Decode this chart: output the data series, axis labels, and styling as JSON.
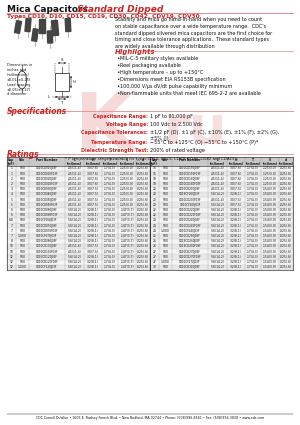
{
  "title_black": "Mica Capacitors",
  "title_red": " Standard Dipped",
  "subtitle": "Types CD10, D10, CD15, CD19, CD30, CD42, CDV19, CDV30",
  "body_text": "Stability and mica go hand-in-hand when you need to count\non stable capacitance over a wide temperature range.  CDC's\nstandard dipped silvered mica capacitors are the first choice for\ntiming and close tolerance applications.  These standard types\nare widely available through distribution",
  "highlights_title": "Highlights",
  "highlights": [
    "MIL-C-5 military styles available",
    "Reel packaging available",
    "High temperature – up to +150°C",
    "Dimensions meet EIA RS153B specification",
    "100,000 V/μs dV/dt pulse capability minimum",
    "Non-flammable units that meet IEC 695-2-2 are available"
  ],
  "specs_title": "Specifications",
  "specs": [
    [
      "Capacitance Range:",
      "1 pF to 91,000 pF"
    ],
    [
      "Voltage Range:",
      "100 Vdc to 2,500 Vdc"
    ],
    [
      "Capacitance Tolerances:",
      "±1/2 pF (D), ±1 pF (C), ±10% (E), ±1% (F), ±2% (G),\n±5% (J)"
    ],
    [
      "Temperature Range:",
      "−55°C to +125°C (O) −55°C to +150°C (P)*"
    ],
    [
      "Dielectric Strength Test:",
      "200% of rated voltage"
    ]
  ],
  "spec_note": "* P temperature range available for types CD10, CD15, CD19, CD30, CD42 and CDA15",
  "ratings_title": "Ratings",
  "ratings_data_left": [
    [
      "1",
      "500",
      "CD10CD010J03F",
      ".45(11.4)",
      ".30(7.6)",
      ".17(4.3)",
      ".125(3.0)",
      ".025(.6)"
    ],
    [
      "1",
      "500",
      "CD10CD010F03F",
      ".45(11.4)",
      ".30(7.6)",
      ".17(4.3)",
      ".125(3.0)",
      ".025(.6)"
    ],
    [
      "2",
      "500",
      "CD10CD020J03F",
      ".45(11.4)",
      ".30(7.6)",
      ".17(4.3)",
      ".125(3.0)",
      ".025(.6)"
    ],
    [
      "2",
      "500",
      "CD10CD020F03F",
      ".45(11.4)",
      ".30(7.6)",
      ".17(4.3)",
      ".125(3.0)",
      ".025(.6)"
    ],
    [
      "3",
      "500",
      "CD10CD030J03F",
      ".45(11.4)",
      ".30(7.5)",
      ".17(4.3)",
      ".125(3.0)",
      ".025(.6)"
    ],
    [
      "4",
      "500",
      "CD10CD040J03F",
      ".45(11.4)",
      ".30(7.5)",
      ".17(4.3)",
      ".125(3.0)",
      ".025(.6)"
    ],
    [
      "5",
      "500",
      "CD10CD050J03F",
      ".45(11.4)",
      ".30(7.5)",
      ".17(4.3)",
      ".125(3.0)",
      ".025(.6)"
    ],
    [
      "5",
      "500",
      "CD10CD050F03F",
      ".45(11.4)",
      ".30(7.5)",
      ".17(4.3)",
      ".125(3.0)",
      ".025(.6)"
    ],
    [
      "6",
      "500",
      "CD10CD060J03F",
      ".56(14.2)",
      ".32(8.1)",
      ".17(4.3)",
      ".147(3.7)",
      ".025(.6)"
    ],
    [
      "6",
      "500",
      "CD10CD060F03F",
      ".56(14.2)",
      ".32(8.1)",
      ".17(4.3)",
      ".147(3.7)",
      ".025(.6)"
    ],
    [
      "6.8",
      "500",
      "CD10CF068J03F",
      ".56(14.2)",
      ".32(8.1)",
      ".17(4.3)",
      ".147(3.7)",
      ".025(.6)"
    ],
    [
      "7",
      "500",
      "CD10CD070J03F",
      ".56(14.2)",
      ".32(8.1)",
      ".17(4.3)",
      ".147(3.7)",
      ".025(.6)"
    ],
    [
      "7",
      "500",
      "CD10CD070F03F",
      ".56(14.2)",
      ".32(8.1)",
      ".17(4.3)",
      ".147(3.7)",
      ".025(.6)"
    ],
    [
      "7",
      "1,000",
      "CD10CF070J03F",
      ".56(14.2)",
      ".32(8.1)",
      ".17(4.3)",
      ".147(3.7)",
      ".025(.6)"
    ],
    [
      "8",
      "500",
      "CD10CD080J03F",
      ".56(14.2)",
      ".32(8.1)",
      ".17(4.3)",
      ".147(3.7)",
      ".025(.6)"
    ],
    [
      "10",
      "500",
      "CD10CD100J03F",
      ".45(11.4)",
      ".30(7.5)",
      ".17(4.3)",
      ".147(3.7)",
      ".025(.6)"
    ],
    [
      "10",
      "500",
      "CD10CD100F03F",
      ".45(11.4)",
      ".30(7.5)",
      ".17(4.3)",
      ".147(3.7)",
      ".025(.6)"
    ],
    [
      "12",
      "500",
      "CD10CD120J03F",
      ".56(14.2)",
      ".32(8.1)",
      ".17(4.3)",
      ".147(3.7)",
      ".025(.6)"
    ],
    [
      "12",
      "500",
      "CD10CD120F03F",
      ".56(14.2)",
      ".32(8.1)",
      ".17(4.3)",
      ".147(3.7)",
      ".025(.6)"
    ],
    [
      "12",
      "1,000",
      "CD10CF120J03F",
      ".56(14.2)",
      ".32(8.1)",
      ".17(4.3)",
      ".147(3.7)",
      ".025(.6)"
    ]
  ],
  "ratings_data_right": [
    [
      "15",
      "500",
      "CD10CD150J03F",
      ".45(11.4)",
      ".30(7.6)",
      ".17(4.3)",
      ".125(3.0)",
      ".025(.6)"
    ],
    [
      "15",
      "500",
      "CD10CD150F03F",
      ".45(11.4)",
      ".30(7.6)",
      ".17(4.3)",
      ".125(3.0)",
      ".025(.6)"
    ],
    [
      "18",
      "500",
      "CD10CD180J03F",
      ".45(11.4)",
      ".30(7.6)",
      ".17(4.3)",
      ".125(3.0)",
      ".025(.6)"
    ],
    [
      "18",
      "500",
      "CD10CD180F03F",
      ".45(11.4)",
      ".30(7.6)",
      ".17(4.3)",
      ".125(3.0)",
      ".025(.6)"
    ],
    [
      "20",
      "500",
      "CD10CD200J03F",
      ".45(11.4)",
      ".30(7.5)",
      ".17(4.3)",
      ".154(3.9)",
      ".025(.6)"
    ],
    [
      "20",
      "500",
      "CD19CF200J03F",
      ".56(14.2)",
      ".32(8.1)",
      ".17(4.3)",
      ".154(3.9)",
      ".025(.6)"
    ],
    [
      "20",
      "500",
      "CD10CD200F03F",
      ".45(11.4)",
      ".30(7.5)",
      ".17(4.3)",
      ".154(3.9)",
      ".025(.6)"
    ],
    [
      "20",
      "500",
      "CD10CF200J03F",
      ".56(14.2)",
      ".30(7.5)",
      ".17(4.3)",
      ".154(3.9)",
      ".025(.6)"
    ],
    [
      "22",
      "500",
      "CD10CD220J03F",
      ".56(14.2)",
      ".32(8.1)",
      ".17(4.3)",
      ".154(3.9)",
      ".025(.6)"
    ],
    [
      "22",
      "500",
      "CD10CD220F03F",
      ".56(14.2)",
      ".32(8.1)",
      ".17(4.3)",
      ".154(3.9)",
      ".025(.6)"
    ],
    [
      "24",
      "500",
      "CD10CD240J03F",
      ".56(14.2)",
      ".32(8.1)",
      ".17(4.3)",
      ".154(3.9)",
      ".025(.6)"
    ],
    [
      "24",
      "500",
      "CD10CD240F03F",
      ".56(14.2)",
      ".32(8.1)",
      ".17(4.3)",
      ".154(3.9)",
      ".025(.6)"
    ],
    [
      "24",
      "1,000",
      "CD10CF240J03F",
      ".56(14.2)",
      ".32(8.1)",
      ".17(4.3)",
      ".154(3.9)",
      ".025(.6)"
    ],
    [
      "25",
      "500",
      "CD10CD250J03F",
      ".56(14.2)",
      ".32(8.1)",
      ".17(4.3)",
      ".154(3.9)",
      ".025(.6)"
    ],
    [
      "26",
      "500",
      "CD19CD260J03F",
      ".56(14.2)",
      ".32(8.1)",
      ".17(4.3)",
      ".154(3.9)",
      ".025(.6)"
    ],
    [
      "26",
      "500",
      "CD19CD260F03F",
      ".56(14.2)",
      ".32(8.1)",
      ".17(4.3)",
      ".154(3.9)",
      ".025(.6)"
    ],
    [
      "27",
      "500",
      "CD10CD270J03F",
      ".56(14.2)",
      ".32(8.1)",
      ".17(4.3)",
      ".154(3.9)",
      ".025(.6)"
    ],
    [
      "27",
      "500",
      "CD10CD270F03F",
      ".56(14.2)",
      ".32(8.1)",
      ".17(4.3)",
      ".154(3.9)",
      ".025(.6)"
    ],
    [
      "27",
      "1,000",
      "CD10CF270J03F",
      ".56(14.2)",
      ".32(8.1)",
      ".17(4.3)",
      ".154(3.9)",
      ".025(.6)"
    ],
    [
      "30",
      "500",
      "CD10CD300J03F",
      ".56(14.2)",
      ".32(8.1)",
      ".17(4.3)",
      ".154(3.9)",
      ".025(.6)"
    ]
  ],
  "footer": "CDC Cornell Dubilier • 1605 E. Rodney French Blvd. • New Bedford, MA 02744 • Phone: (508)996-8561 • Fax: (508)996-3830 • www.cde.com",
  "bg_color": "#ffffff",
  "header_red": "#cc2222",
  "line_red": "#e88888"
}
